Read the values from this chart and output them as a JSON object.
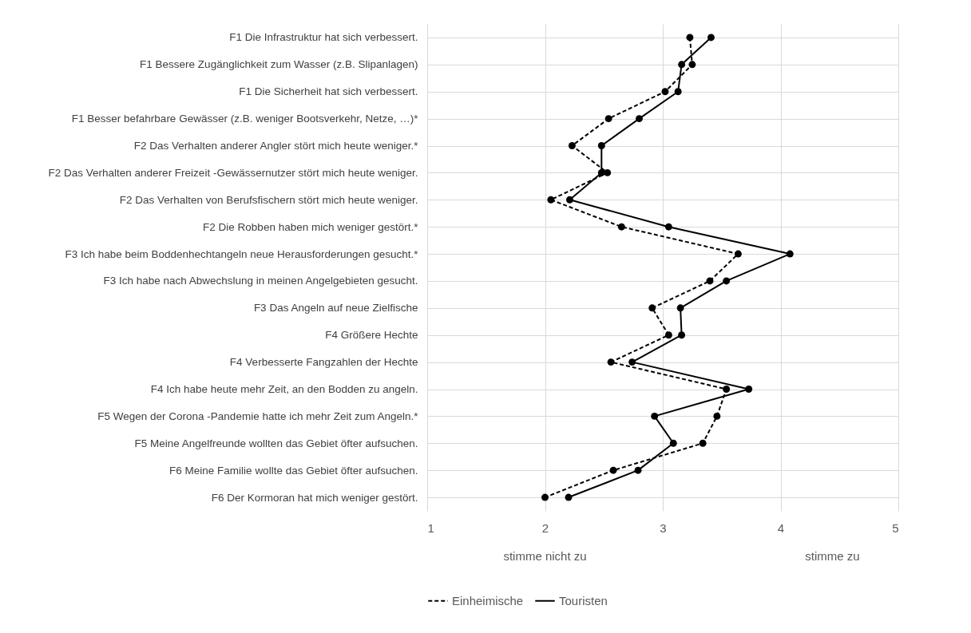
{
  "chart_data": {
    "type": "line",
    "orientation": "horizontal",
    "categories": [
      "F1 Die Infrastruktur hat sich verbessert.",
      "F1 Bessere Zugänglichkeit zum Wasser (z.B. Slipanlagen)",
      "F1 Die Sicherheit hat sich verbessert.",
      "F1 Besser befahrbare Gewässer (z.B. weniger Bootsverkehr, Netze, …)*",
      "F2 Das Verhalten anderer Angler stört mich heute weniger.*",
      "F2 Das Verhalten anderer Freizeit -Gewässernutzer stört mich heute weniger.",
      "F2 Das Verhalten von Berufsfischern stört mich heute weniger.",
      "F2 Die Robben haben mich weniger gestört.*",
      "F3 Ich habe beim Boddenhechtangeln neue Herausforderungen gesucht.*",
      "F3 Ich habe nach Abwechslung in meinen Angelgebieten gesucht.",
      "F3 Das Angeln auf neue Zielfische",
      "F4 Größere Hechte",
      "F4 Verbesserte Fangzahlen der Hechte",
      "F4 Ich habe heute mehr Zeit, an den Bodden zu angeln.",
      "F5 Wegen der Corona -Pandemie hatte ich mehr Zeit zum Angeln.*",
      "F5 Meine Angelfreunde wollten das Gebiet öfter aufsuchen.",
      "F6 Meine Familie wollte das Gebiet öfter aufsuchen.",
      "F6 Der Kormoran hat mich weniger gestört."
    ],
    "series": [
      {
        "name": "Einheimische",
        "color": "#000000",
        "line_style": "dashed",
        "values": [
          3.23,
          3.25,
          3.02,
          2.54,
          2.23,
          2.53,
          2.05,
          2.65,
          3.64,
          3.4,
          2.91,
          3.05,
          2.56,
          3.54,
          3.46,
          3.34,
          2.58,
          2.0
        ]
      },
      {
        "name": "Touristen",
        "color": "#000000",
        "line_style": "solid",
        "values": [
          3.41,
          3.16,
          3.13,
          2.8,
          2.48,
          2.48,
          2.21,
          3.05,
          4.08,
          3.54,
          3.15,
          3.16,
          2.74,
          3.73,
          2.93,
          3.09,
          2.79,
          2.2
        ]
      }
    ],
    "xlim": [
      1,
      5
    ],
    "xticks": [
      1,
      2,
      3,
      4,
      5
    ],
    "grid": true,
    "marker": "circle",
    "legend": "bottom",
    "annotations": [
      "stimme nicht zu",
      "stimme zu"
    ]
  }
}
